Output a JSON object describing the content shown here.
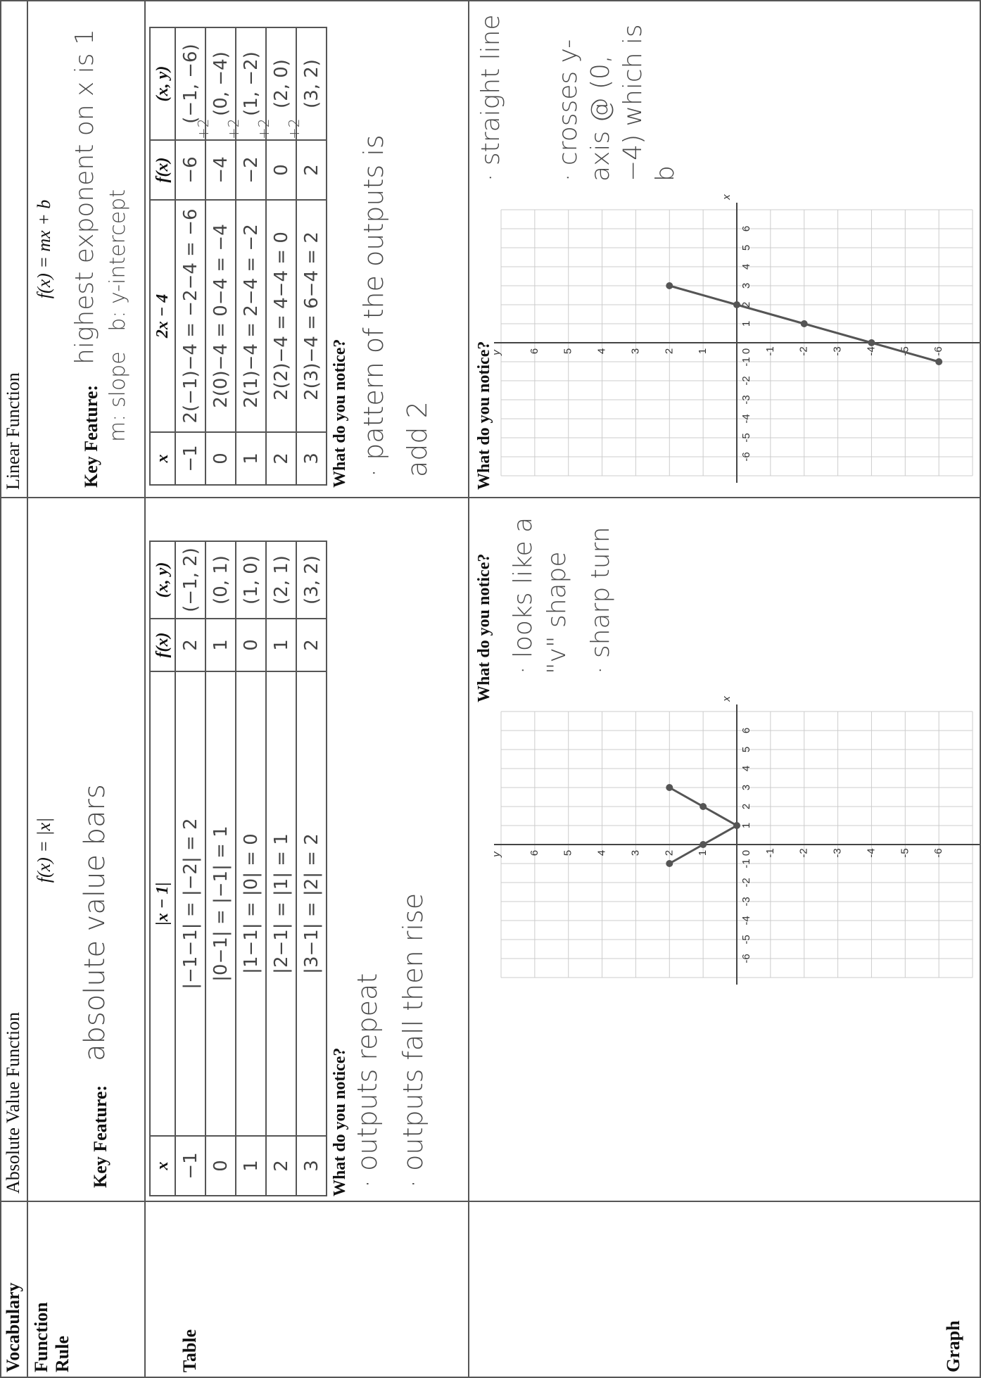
{
  "header": {
    "vocabulary": "Vocabulary",
    "absolute": "Absolute Value Function",
    "linear": "Linear Function"
  },
  "function_rule": {
    "label": "Function Rule",
    "absolute": {
      "rule": "f(x) = |x|",
      "key_feature_label": "Key Feature:",
      "key_feature": [
        "absolute value bars"
      ]
    },
    "linear": {
      "rule": "f(x) = mx + b",
      "key_feature_label": "Key Feature:",
      "key_feature": [
        "highest exponent on x is 1",
        "m: slope   b: y-intercept"
      ]
    }
  },
  "table": {
    "label": "Table",
    "absolute": {
      "headers": [
        "x",
        "|x − 1|",
        "f(x)",
        "(x, y)"
      ],
      "rows": [
        [
          "−1",
          "|−1−1| = |−2| = 2",
          "2",
          "(−1, 2)"
        ],
        [
          "0",
          "|0−1| = |−1| = 1",
          "1",
          "(0, 1)"
        ],
        [
          "1",
          "|1−1| = |0| = 0",
          "0",
          "(1, 0)"
        ],
        [
          "2",
          "|2−1| = |1| = 1",
          "1",
          "(2, 1)"
        ],
        [
          "3",
          "|3−1| = |2| = 2",
          "2",
          "(3, 2)"
        ]
      ],
      "notice_label": "What do you notice?",
      "notes": [
        "· outputs repeat",
        "· outputs fall then rise"
      ]
    },
    "linear": {
      "headers": [
        "x",
        "2x − 4",
        "f(x)",
        "(x, y)"
      ],
      "rows": [
        [
          "−1",
          "2(−1)−4 = −2−4 = −6",
          "−6",
          "(−1, −6)"
        ],
        [
          "0",
          "2(0)−4 = 0−4 = −4",
          "−4",
          "(0, −4)"
        ],
        [
          "1",
          "2(1)−4 = 2−4 = −2",
          "−2",
          "(1, −2)"
        ],
        [
          "2",
          "2(2)−4 = 4−4 = 0",
          "0",
          "(2, 0)"
        ],
        [
          "3",
          "2(3)−4 = 6−4 = 2",
          "2",
          "(3, 2)"
        ]
      ],
      "differences": [
        "+2",
        "+2",
        "+2",
        "+2"
      ],
      "notice_label": "What do you notice?",
      "notes": [
        "· pattern of the outputs is add 2"
      ]
    }
  },
  "graph": {
    "label": "Graph",
    "absolute": {
      "notice_label": "What do you notice?",
      "notes": [
        "· looks like a \"v\" shape",
        "· sharp turn"
      ],
      "x_label": "x",
      "y_label": "y",
      "xlim": [
        -7,
        7
      ],
      "ylim": [
        -7,
        7
      ],
      "ticks": [
        -6,
        -5,
        -4,
        -3,
        -2,
        -1,
        0,
        1,
        2,
        3,
        4,
        5,
        6
      ],
      "points": {
        "x": [
          -1,
          0,
          1,
          2,
          3
        ],
        "y": [
          2,
          1,
          0,
          1,
          2
        ]
      }
    },
    "linear": {
      "notice_label": "What do you notice?",
      "notes": [
        "· straight line",
        "· crosses y-axis @ (0, −4) which is b"
      ],
      "x_label": "x",
      "y_label": "y",
      "xlim": [
        -7,
        7
      ],
      "ylim": [
        -7,
        7
      ],
      "ticks": [
        -6,
        -5,
        -4,
        -3,
        -2,
        -1,
        0,
        1,
        2,
        3,
        4,
        5,
        6
      ],
      "points": {
        "x": [
          -1,
          0,
          1,
          2,
          3
        ],
        "y": [
          -6,
          -4,
          -2,
          0,
          2
        ]
      }
    }
  }
}
